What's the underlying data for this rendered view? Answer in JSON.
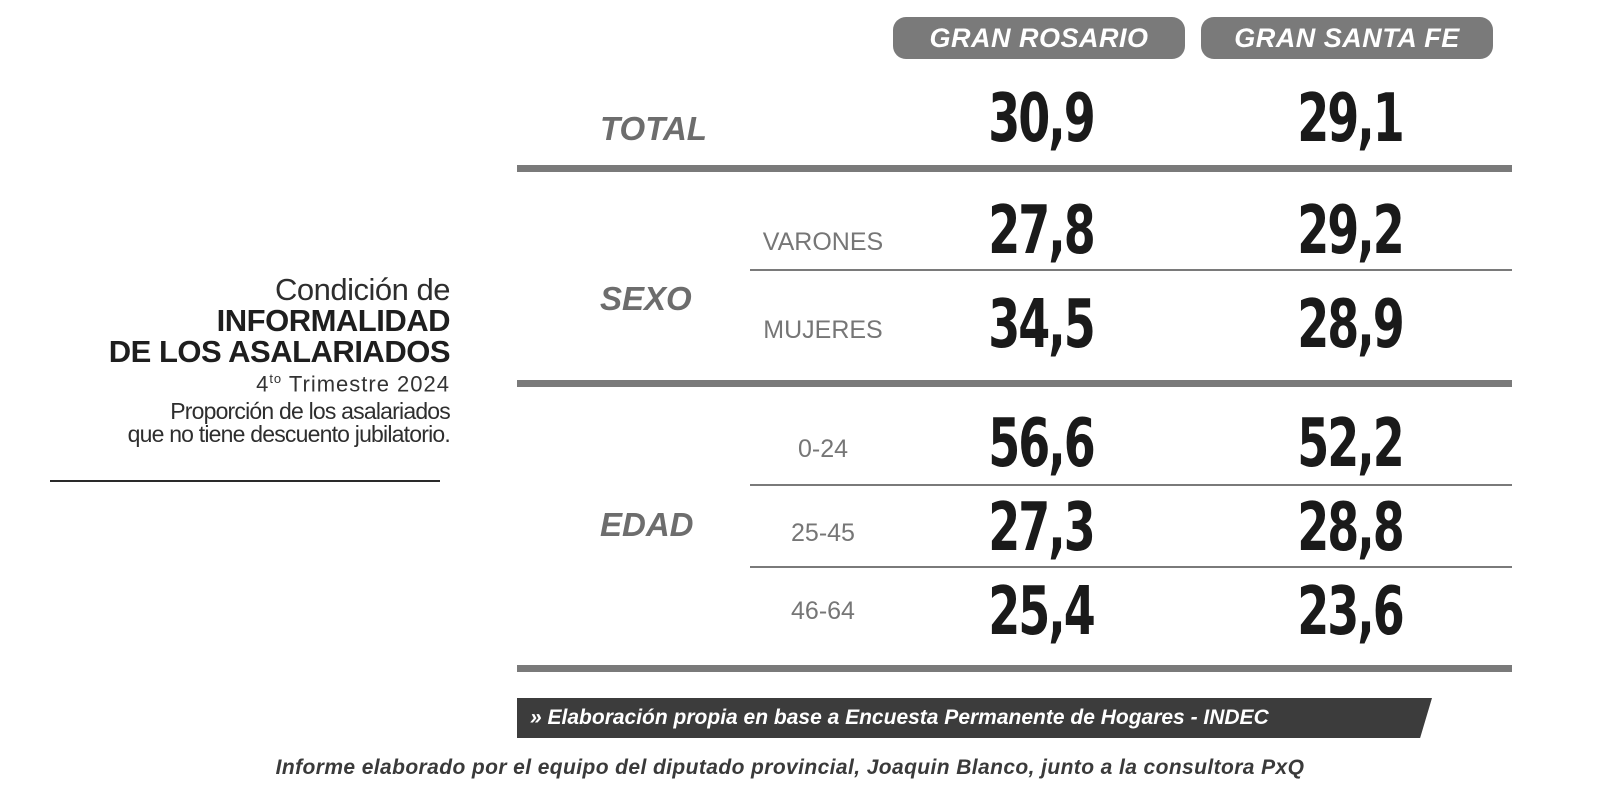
{
  "description": {
    "line1": "Condición de",
    "line2": "INFORMALIDAD",
    "line3": "DE LOS ASALARIADOS",
    "period_number": "4",
    "period_suffix": "to",
    "period_rest": " Trimestre 2024",
    "line5": "Proporción de los asalariados",
    "line6": "que no tiene descuento jubilatorio."
  },
  "footer": {
    "source": "» Elaboración propia en base a Encuesta Permanente de Hogares - INDEC",
    "credit": "Informe elaborado por el equipo del diputado provincial, Joaquin Blanco, junto a la consultora PxQ"
  },
  "colors": {
    "header_pill": "#7a7a7a",
    "rules": "#7a7a7a",
    "source_bar": "#3c3c3c",
    "text_dark": "#1a1a1a"
  },
  "chart_data": {
    "type": "table",
    "columns": [
      "GRAN ROSARIO",
      "GRAN SANTA FE"
    ],
    "sections": [
      {
        "section": "TOTAL",
        "rows": [
          {
            "label": "",
            "values": [
              "30,9",
              "29,1"
            ]
          }
        ]
      },
      {
        "section": "SEXO",
        "rows": [
          {
            "label": "VARONES",
            "values": [
              "27,8",
              "29,2"
            ]
          },
          {
            "label": "MUJERES",
            "values": [
              "34,5",
              "28,9"
            ]
          }
        ]
      },
      {
        "section": "EDAD",
        "rows": [
          {
            "label": "0-24",
            "values": [
              "56,6",
              "52,2"
            ]
          },
          {
            "label": "25-45",
            "values": [
              "27,3",
              "28,8"
            ]
          },
          {
            "label": "46-64",
            "values": [
              "25,4",
              "23,6"
            ]
          }
        ]
      }
    ]
  }
}
